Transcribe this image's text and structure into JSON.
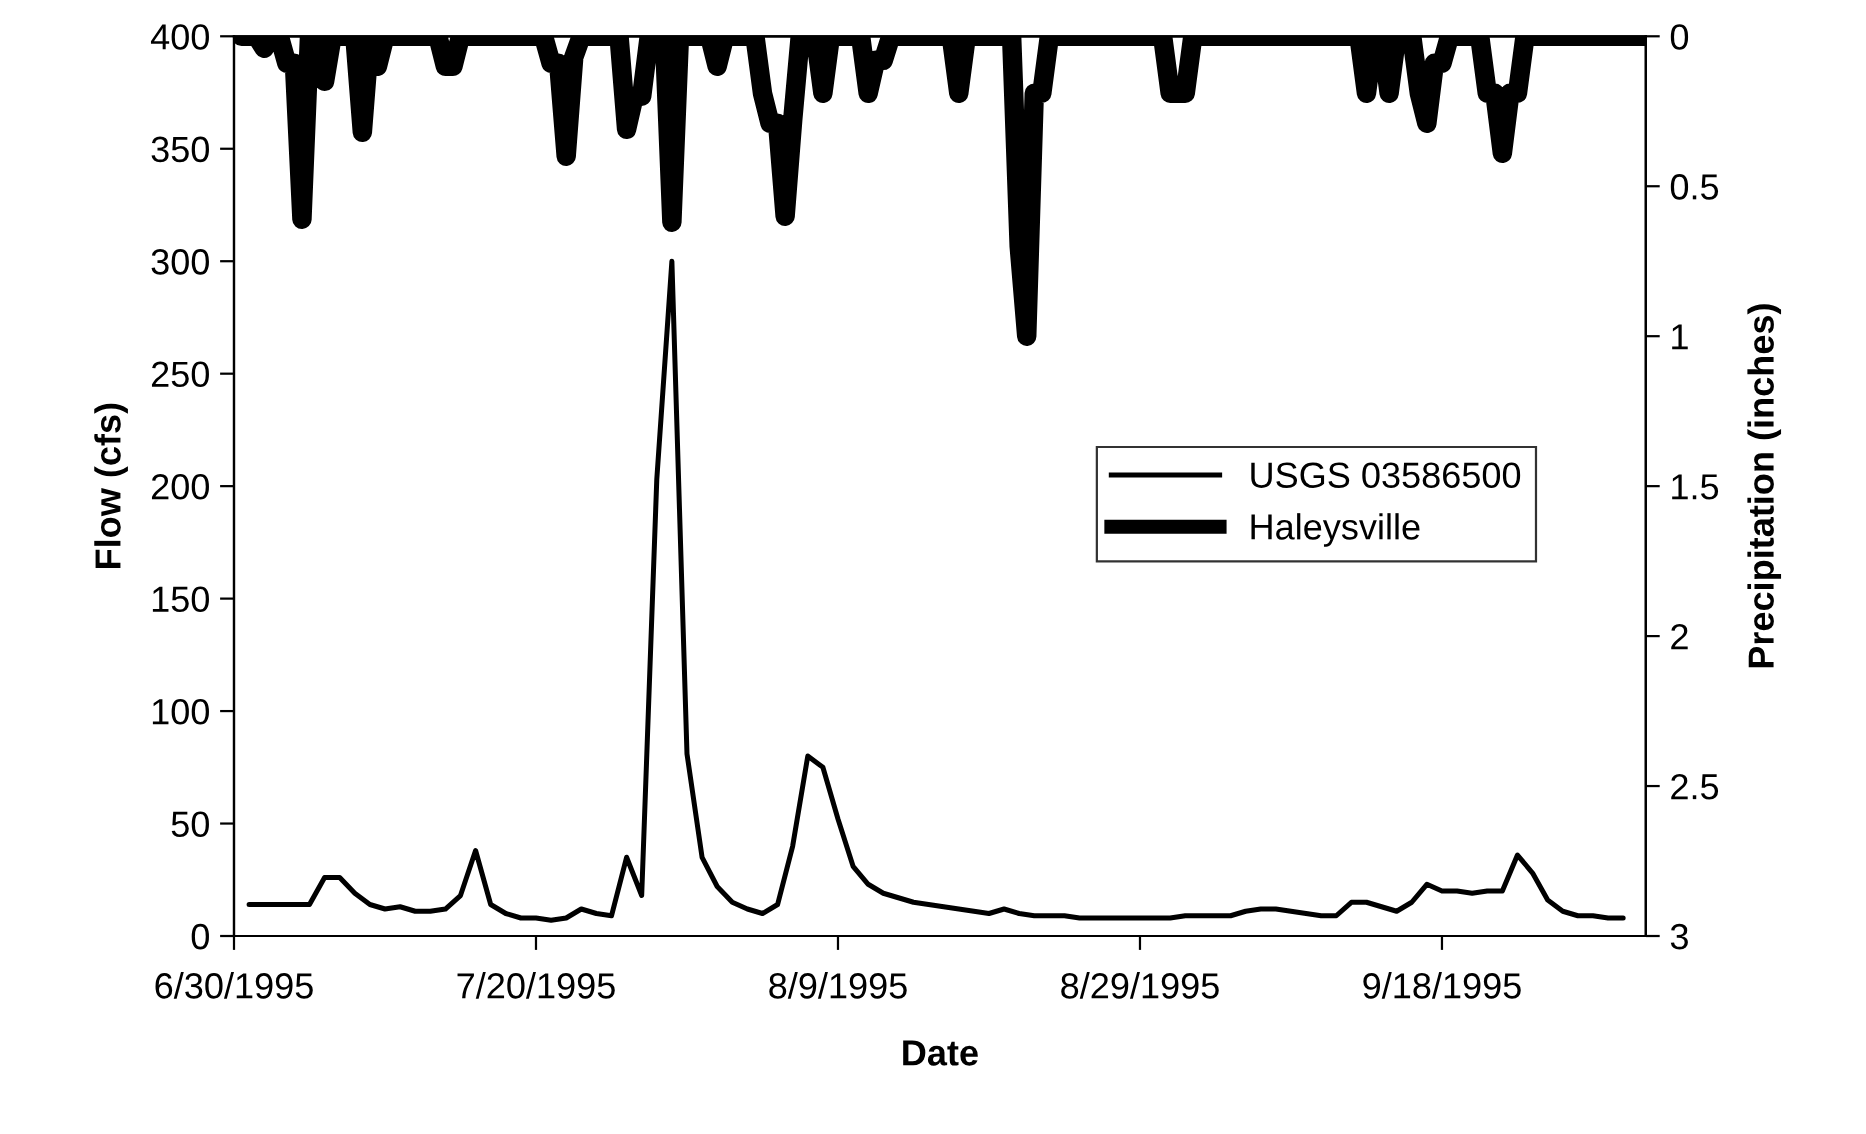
{
  "chart_data": {
    "type": "line",
    "xlabel": "Date",
    "ylabel": "Flow (cfs)",
    "y2label": "Precipitation (inches)",
    "xlim": [
      "1995-06-30",
      "1995-10-01T12:00"
    ],
    "xticks": [
      {
        "value": "1995-06-30",
        "label": "6/30/1995"
      },
      {
        "value": "1995-07-20",
        "label": "7/20/1995"
      },
      {
        "value": "1995-08-09",
        "label": "8/9/1995"
      },
      {
        "value": "1995-08-29",
        "label": "8/29/1995"
      },
      {
        "value": "1995-09-18",
        "label": "9/18/1995"
      }
    ],
    "ylim": [
      0,
      400
    ],
    "yticks": [
      0,
      50,
      100,
      150,
      200,
      250,
      300,
      350,
      400
    ],
    "y2lim": [
      3,
      0
    ],
    "y2ticks": [
      0,
      0.5,
      1,
      1.5,
      2,
      2.5,
      3
    ],
    "grid": false,
    "legend": "right",
    "marker": "none",
    "line_style": "solid",
    "series": [
      {
        "name": "USGS 03586500",
        "color": "#000000",
        "x": [
          "1995-07-01",
          "1995-07-02",
          "1995-07-03",
          "1995-07-04",
          "1995-07-05",
          "1995-07-06",
          "1995-07-07",
          "1995-07-08",
          "1995-07-09",
          "1995-07-10",
          "1995-07-11",
          "1995-07-12",
          "1995-07-13",
          "1995-07-14",
          "1995-07-15",
          "1995-07-16",
          "1995-07-17",
          "1995-07-18",
          "1995-07-19",
          "1995-07-20",
          "1995-07-21",
          "1995-07-22",
          "1995-07-23",
          "1995-07-24",
          "1995-07-25",
          "1995-07-26",
          "1995-07-27",
          "1995-07-28",
          "1995-07-29",
          "1995-07-30",
          "1995-07-31",
          "1995-08-01",
          "1995-08-02",
          "1995-08-03",
          "1995-08-04",
          "1995-08-05",
          "1995-08-06",
          "1995-08-07",
          "1995-08-08",
          "1995-08-09",
          "1995-08-10",
          "1995-08-11",
          "1995-08-12",
          "1995-08-13",
          "1995-08-14",
          "1995-08-15",
          "1995-08-16",
          "1995-08-17",
          "1995-08-18",
          "1995-08-19",
          "1995-08-20",
          "1995-08-21",
          "1995-08-22",
          "1995-08-23",
          "1995-08-24",
          "1995-08-25",
          "1995-08-26",
          "1995-08-27",
          "1995-08-28",
          "1995-08-29",
          "1995-08-30",
          "1995-08-31",
          "1995-09-01",
          "1995-09-02",
          "1995-09-03",
          "1995-09-04",
          "1995-09-05",
          "1995-09-06",
          "1995-09-07",
          "1995-09-08",
          "1995-09-09",
          "1995-09-10",
          "1995-09-11",
          "1995-09-12",
          "1995-09-13",
          "1995-09-14",
          "1995-09-15",
          "1995-09-16",
          "1995-09-17",
          "1995-09-18",
          "1995-09-19",
          "1995-09-20",
          "1995-09-21",
          "1995-09-22",
          "1995-09-23",
          "1995-09-24",
          "1995-09-25",
          "1995-09-26",
          "1995-09-27",
          "1995-09-28",
          "1995-09-29",
          "1995-09-30"
        ],
        "values": [
          14,
          14,
          14,
          14,
          14,
          26,
          26,
          19,
          14,
          12,
          13,
          11,
          11,
          12,
          18,
          38,
          14,
          10,
          8,
          8,
          7,
          8,
          12,
          10,
          9,
          35,
          18,
          203,
          300,
          81,
          35,
          22,
          15,
          12,
          10,
          14,
          40,
          80,
          75,
          52,
          31,
          23,
          19,
          17,
          15,
          14,
          13,
          12,
          11,
          10,
          12,
          10,
          9,
          9,
          9,
          8,
          8,
          8,
          8,
          8,
          8,
          8,
          9,
          9,
          9,
          9,
          11,
          12,
          12,
          11,
          10,
          9,
          9,
          15,
          15,
          13,
          11,
          15,
          23,
          20,
          20,
          19,
          20,
          20,
          36,
          28,
          16,
          11,
          9,
          9,
          8,
          8
        ]
      },
      {
        "name": "Haleysville",
        "color": "#000000",
        "axis": "y2",
        "x": [
          "1995-06-30T12:00",
          "1995-07-01T12:00",
          "1995-07-02",
          "1995-07-02T12:00",
          "1995-07-03",
          "1995-07-03T12:00",
          "1995-07-04",
          "1995-07-04T12:00",
          "1995-07-05",
          "1995-07-05T12:00",
          "1995-07-06",
          "1995-07-06T12:00",
          "1995-07-08",
          "1995-07-08T12:00",
          "1995-07-09",
          "1995-07-09T12:00",
          "1995-07-10",
          "1995-07-13T12:00",
          "1995-07-14",
          "1995-07-14T12:00",
          "1995-07-15",
          "1995-07-20T12:00",
          "1995-07-21",
          "1995-07-21T12:00",
          "1995-07-22",
          "1995-07-22T12:00",
          "1995-07-23",
          "1995-07-25T12:00",
          "1995-07-26",
          "1995-07-26T12:00",
          "1995-07-27",
          "1995-07-27T12:00",
          "1995-07-28T12:00",
          "1995-07-29",
          "1995-07-29T12:00",
          "1995-07-31T12:00",
          "1995-08-01",
          "1995-08-01T12:00",
          "1995-08-03T12:00",
          "1995-08-04",
          "1995-08-04T12:00",
          "1995-08-05",
          "1995-08-05T12:00",
          "1995-08-06",
          "1995-08-06T12:00",
          "1995-08-07T12:00",
          "1995-08-08",
          "1995-08-08T12:00",
          "1995-08-10T12:00",
          "1995-08-11",
          "1995-08-11T12:00",
          "1995-08-12",
          "1995-08-12T12:00",
          "1995-08-16T12:00",
          "1995-08-17",
          "1995-08-17T12:00",
          "1995-08-20T12:00",
          "1995-08-21",
          "1995-08-21T12:00",
          "1995-08-22",
          "1995-08-22T12:00",
          "1995-08-23",
          "1995-08-30T12:00",
          "1995-08-31",
          "1995-08-31T12:00",
          "1995-09-01",
          "1995-09-01T12:00",
          "1995-09-12T12:00",
          "1995-09-13",
          "1995-09-13T12:00",
          "1995-09-14",
          "1995-09-14T12:00",
          "1995-09-15",
          "1995-09-16",
          "1995-09-16T12:00",
          "1995-09-17",
          "1995-09-17T12:00",
          "1995-09-18",
          "1995-09-18T12:00",
          "1995-09-20T12:00",
          "1995-09-21",
          "1995-09-21T12:00",
          "1995-09-22",
          "1995-09-22T12:00",
          "1995-09-23",
          "1995-09-23T12:00",
          "1995-10-01T12:00"
        ],
        "values": [
          0,
          0,
          0.04,
          0,
          0,
          0.09,
          0.09,
          0.61,
          0,
          0,
          0.15,
          0,
          0,
          0.32,
          0,
          0.1,
          0,
          0,
          0.1,
          0.1,
          0,
          0,
          0.09,
          0.09,
          0.4,
          0.07,
          0,
          0,
          0.31,
          0.2,
          0.2,
          0,
          0,
          0.62,
          0,
          0,
          0.1,
          0,
          0,
          0.19,
          0.29,
          0.29,
          0.6,
          0.28,
          0,
          0,
          0.19,
          0,
          0,
          0.19,
          0.08,
          0.08,
          0,
          0,
          0.19,
          0,
          0,
          0.7,
          1,
          0.19,
          0.19,
          0,
          0,
          0.19,
          0.19,
          0.19,
          0,
          0,
          0.19,
          0,
          0,
          0.19,
          0,
          0,
          0.19,
          0.29,
          0.09,
          0.09,
          0,
          0,
          0.19,
          0.19,
          0.39,
          0.19,
          0.19,
          0,
          0
        ]
      }
    ]
  }
}
